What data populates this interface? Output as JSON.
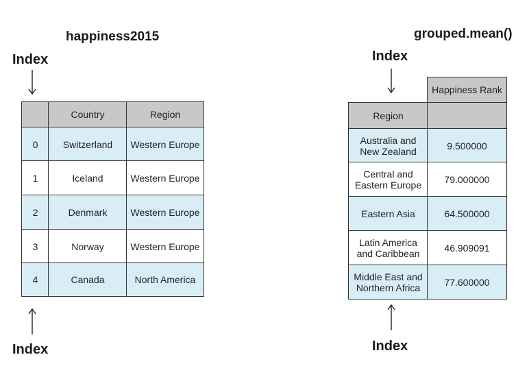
{
  "left": {
    "title": "happiness2015",
    "index_top": "Index",
    "index_bottom": "Index",
    "columns": [
      "",
      "Country",
      "Region"
    ],
    "rows": [
      [
        "0",
        "Switzerland",
        "Western Europe"
      ],
      [
        "1",
        "Iceland",
        "Western Europe"
      ],
      [
        "2",
        "Denmark",
        "Western Europe"
      ],
      [
        "3",
        "Norway",
        "Western Europe"
      ],
      [
        "4",
        "Canada",
        "North America"
      ]
    ]
  },
  "right": {
    "title": "grouped.mean()",
    "index_top": "Index",
    "index_bottom": "Index",
    "column_header": "Happiness Rank",
    "index_header": "Region",
    "rows": [
      [
        "Australia and New Zealand",
        "9.500000"
      ],
      [
        "Central and Eastern Europe",
        "79.000000"
      ],
      [
        "Eastern Asia",
        "64.500000"
      ],
      [
        "Latin America and Caribbean",
        "46.909091"
      ],
      [
        "Middle East and Northern Africa",
        "77.600000"
      ]
    ]
  },
  "colors": {
    "header": "#c8c8c8",
    "highlight": "#d9edf7",
    "border": "#333333"
  }
}
